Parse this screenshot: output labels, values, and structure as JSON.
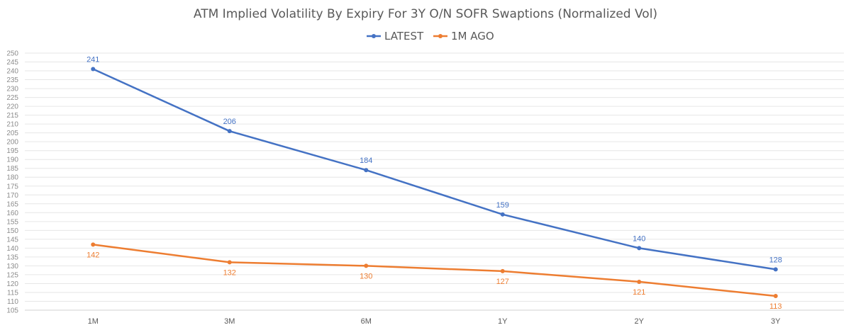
{
  "chart_data": {
    "type": "line",
    "title": "ATM Implied Volatility By Expiry For 3Y O/N SOFR Swaptions (Normalized Vol)",
    "categories": [
      "1M",
      "3M",
      "6M",
      "1Y",
      "2Y",
      "3Y"
    ],
    "series": [
      {
        "name": "LATEST",
        "color": "#4472c4",
        "values": [
          241,
          206,
          184,
          159,
          140,
          128
        ],
        "labels": [
          "241",
          "206",
          "184",
          "159",
          "140",
          "128"
        ]
      },
      {
        "name": "1M AGO",
        "color": "#ed7d31",
        "values": [
          142,
          132,
          130,
          127,
          121,
          113
        ],
        "labels": [
          "142",
          "132",
          "130",
          "127",
          "121",
          "113"
        ]
      }
    ],
    "ylim": [
      105,
      250
    ],
    "ytick_step": 5,
    "yticks": [
      "105",
      "110",
      "115",
      "120",
      "125",
      "130",
      "135",
      "140",
      "145",
      "150",
      "155",
      "160",
      "165",
      "170",
      "175",
      "180",
      "185",
      "190",
      "195",
      "200",
      "205",
      "210",
      "215",
      "220",
      "225",
      "230",
      "235",
      "240",
      "245",
      "250"
    ],
    "grid": true,
    "legend_position": "top-center"
  }
}
